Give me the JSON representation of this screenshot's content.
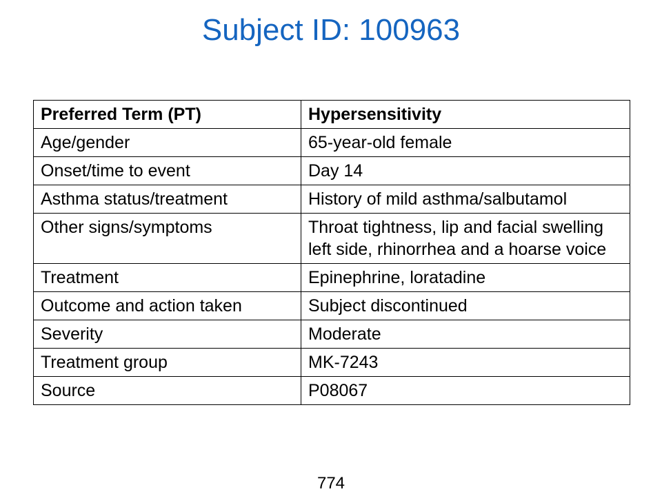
{
  "title": "Subject ID: 100963",
  "table": {
    "header": {
      "label": "Preferred Term (PT)",
      "value": "Hypersensitivity"
    },
    "rows": [
      {
        "label": "Age/gender",
        "value": "65-year-old female"
      },
      {
        "label": "Onset/time to event",
        "value": "Day 14"
      },
      {
        "label": "Asthma status/treatment",
        "value": "History of mild asthma/salbutamol"
      },
      {
        "label": "Other signs/symptoms",
        "value": "Throat tightness, lip and facial swelling left side, rhinorrhea and a hoarse voice"
      },
      {
        "label": "Treatment",
        "value": "Epinephrine, loratadine"
      },
      {
        "label": "Outcome and action taken",
        "value": "Subject discontinued"
      },
      {
        "label": "Severity",
        "value": "Moderate"
      },
      {
        "label": "Treatment group",
        "value": "MK-7243"
      },
      {
        "label": "Source",
        "value": "P08067"
      }
    ]
  },
  "page_number": "774",
  "colors": {
    "title": "#1565c0",
    "border": "#000000",
    "text": "#000000"
  }
}
